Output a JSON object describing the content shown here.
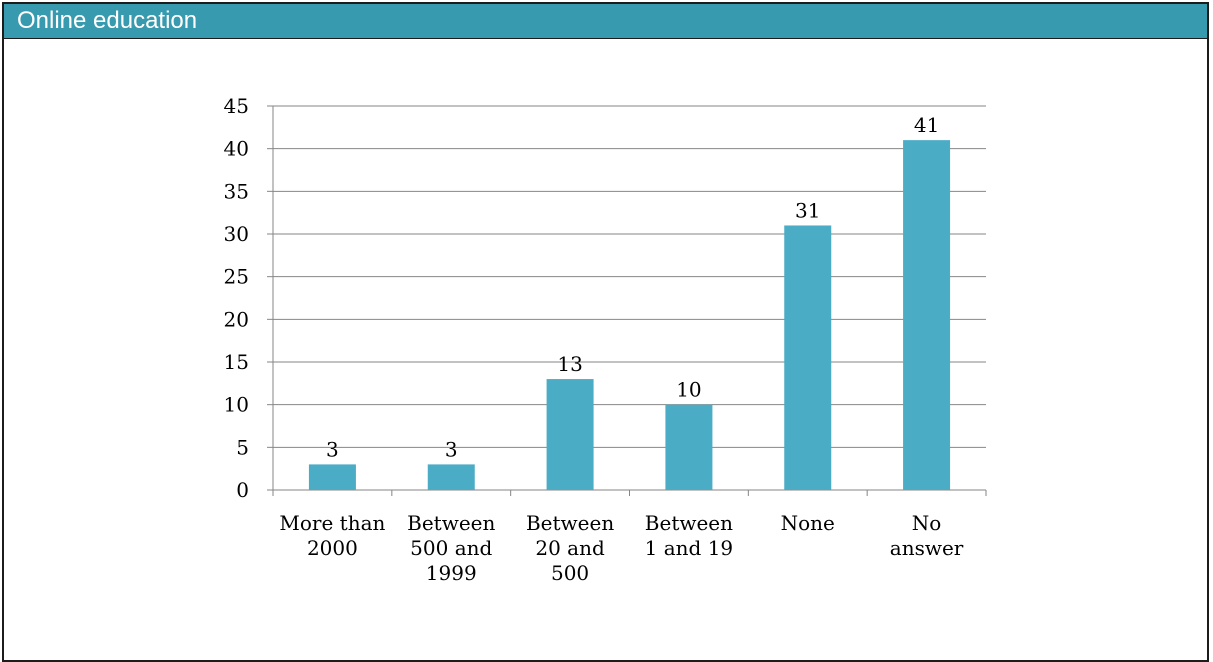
{
  "header": {
    "title": "Online education"
  },
  "chart_data": {
    "type": "bar",
    "categories": [
      [
        "More than",
        "2000"
      ],
      [
        "Between",
        "500 and",
        "1999"
      ],
      [
        "Between",
        "20 and",
        "500"
      ],
      [
        "Between",
        "1 and 19"
      ],
      [
        "None"
      ],
      [
        "No",
        "answer"
      ]
    ],
    "values": [
      3,
      3,
      13,
      10,
      31,
      41
    ],
    "data_labels": [
      "3",
      "3",
      "13",
      "10",
      "31",
      "41"
    ],
    "y_ticks": [
      "0",
      "5",
      "10",
      "15",
      "20",
      "25",
      "30",
      "35",
      "40",
      "45"
    ],
    "ylim": [
      0,
      45
    ],
    "y_step": 5,
    "grid": true,
    "legend": "none",
    "colors": {
      "bar": "#4bacc6",
      "header": "#389aae",
      "grid": "#868686",
      "text": "#000000"
    }
  }
}
